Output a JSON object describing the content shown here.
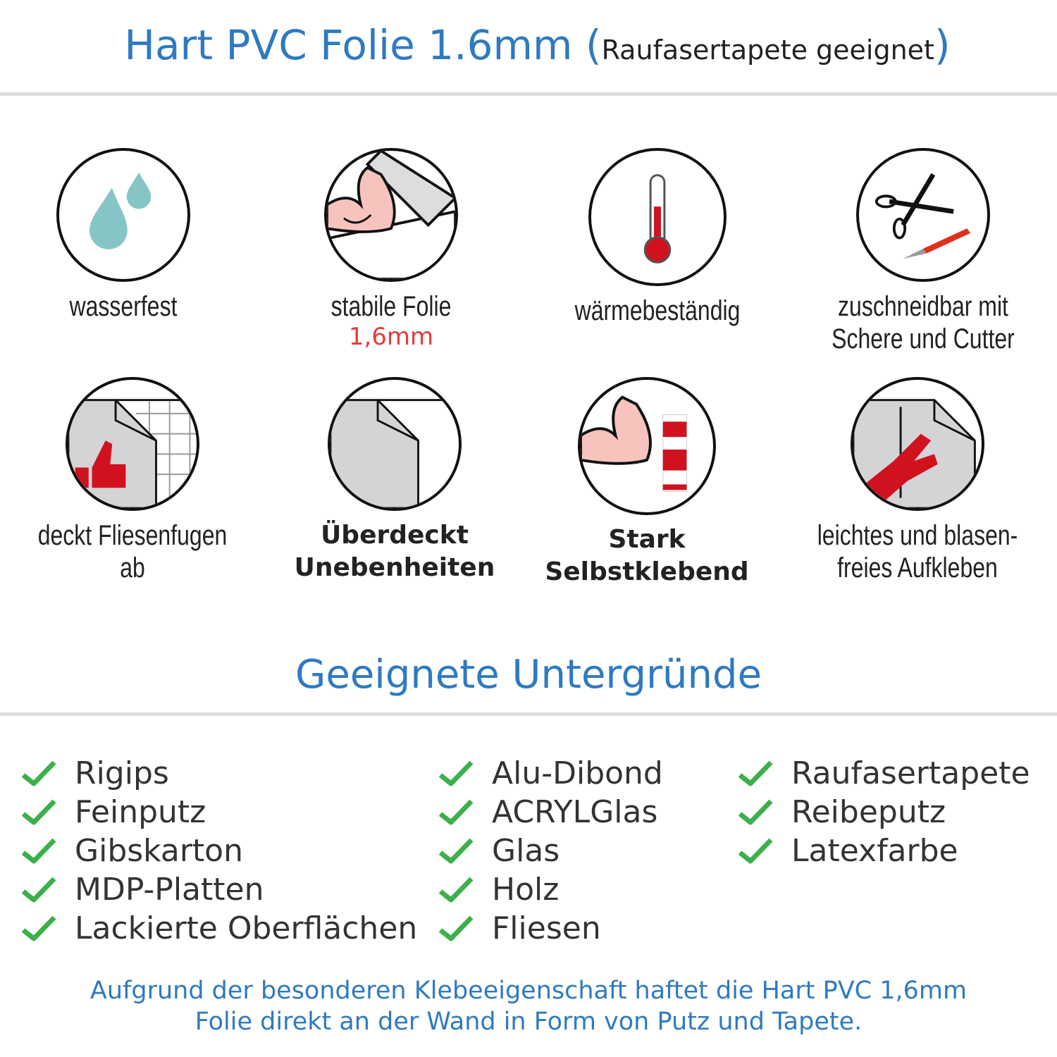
{
  "header": {
    "title": "Hart PVC Folie 1.6mm",
    "subtitle": "Raufasertapete geeignet"
  },
  "features": [
    {
      "icon": "water-drops-icon",
      "label": "wasserfest"
    },
    {
      "icon": "strong-arm-foil-icon",
      "label": "stabile Folie",
      "sublabel": "1,6mm"
    },
    {
      "icon": "thermometer-icon",
      "label": "wärmebeständig"
    },
    {
      "icon": "scissors-cutter-icon",
      "label_line1": "zuschneidbar mit",
      "label_line2": "Schere und Cutter"
    },
    {
      "icon": "thumbs-up-tiles-icon",
      "label": "deckt Fliesenfugen ab"
    },
    {
      "icon": "foil-corner-icon",
      "label_line1": "Überdeckt",
      "label_line2": "Unebenheiten"
    },
    {
      "icon": "strong-arm-glue-icon",
      "label_line1": "Stark",
      "label_line2": "Selbstklebend"
    },
    {
      "icon": "hand-smoothing-icon",
      "label_line1": "leichtes und blasen-",
      "label_line2": "freies Aufkleben"
    }
  ],
  "surfaces": {
    "title": "Geeignete Untergründe",
    "columns": [
      [
        "Rigips",
        "Feinputz",
        "Gibskarton",
        "MDP-Platten",
        "Lackierte Oberflächen"
      ],
      [
        "Alu-Dibond",
        "ACRYLGlas",
        "Glas",
        "Holz",
        "Fliesen"
      ],
      [
        "Raufasertapete",
        "Reibeputz",
        "Latexfarbe"
      ]
    ]
  },
  "footer": {
    "line1": "Aufgrund der besonderen Klebeeigenschaft haftet die Hart PVC 1,6mm",
    "line2": "Folie direkt an der Wand in Form von Putz und Tapete."
  },
  "colors": {
    "accent": "#2f7ac0",
    "check": "#3cb04a",
    "highlight": "#e53b3b",
    "icon_red": "#d0121f",
    "water": "#86c5c5"
  }
}
